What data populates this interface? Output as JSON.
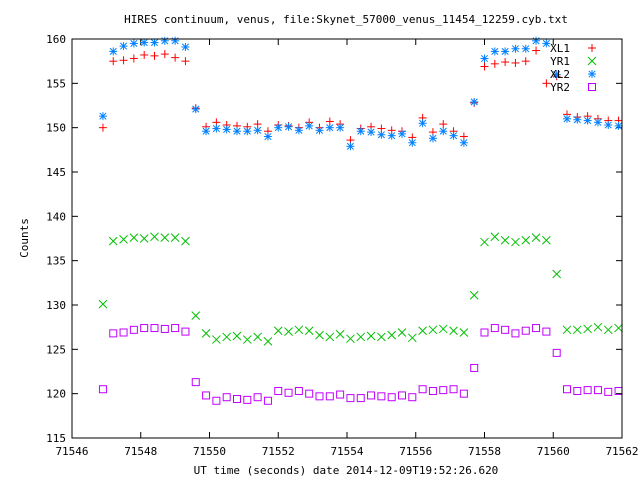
{
  "chart_data": {
    "type": "scatter",
    "title": "HIRES continuum, venus, file:Skynet_57000_venus_11454_12259.cyb.txt",
    "xlabel": "UT time (seconds) date 2014-12-09T19:52:26.620",
    "ylabel": "Counts",
    "xlim": [
      71546,
      71562
    ],
    "ylim": [
      115,
      160
    ],
    "x_ticks": [
      "71546",
      "71548",
      "71550",
      "71552",
      "71554",
      "71556",
      "71558",
      "71560",
      "71562"
    ],
    "y_ticks": [
      "115",
      "120",
      "125",
      "130",
      "135",
      "140",
      "145",
      "150",
      "155",
      "160"
    ],
    "x_tick_values": [
      71546,
      71548,
      71550,
      71552,
      71554,
      71556,
      71558,
      71560,
      71562
    ],
    "y_tick_values": [
      115,
      120,
      125,
      130,
      135,
      140,
      145,
      150,
      155,
      160
    ],
    "grid": false,
    "legend_position": "top-right",
    "x": [
      71546.9,
      71547.2,
      71547.5,
      71547.8,
      71548.1,
      71548.4,
      71548.7,
      71549.0,
      71549.3,
      71549.6,
      71549.9,
      71550.2,
      71550.5,
      71550.8,
      71551.1,
      71551.4,
      71551.7,
      71552.0,
      71552.3,
      71552.6,
      71552.9,
      71553.2,
      71553.5,
      71553.8,
      71554.1,
      71554.4,
      71554.7,
      71555.0,
      71555.3,
      71555.6,
      71555.9,
      71556.2,
      71556.5,
      71556.8,
      71557.1,
      71557.4,
      71557.7,
      71558.0,
      71558.3,
      71558.6,
      71558.9,
      71559.2,
      71559.5,
      71559.8,
      71560.1,
      71560.4,
      71560.7,
      71561.0,
      71561.3,
      71561.6,
      71561.9
    ],
    "series": [
      {
        "name": "XL1",
        "color": "#ff0000",
        "marker": "plus",
        "values": [
          150.0,
          157.5,
          157.6,
          157.8,
          158.2,
          158.1,
          158.3,
          157.9,
          157.5,
          152.2,
          150.1,
          150.6,
          150.3,
          150.2,
          150.1,
          150.4,
          149.6,
          150.3,
          150.2,
          150.0,
          150.6,
          150.0,
          150.7,
          150.4,
          148.6,
          149.9,
          150.1,
          149.9,
          149.7,
          149.6,
          148.9,
          151.1,
          149.5,
          150.4,
          149.6,
          149.0,
          152.8,
          156.9,
          157.2,
          157.4,
          157.3,
          157.5,
          158.7,
          155.0,
          155.8,
          151.5,
          151.2,
          151.3,
          151.0,
          150.8,
          150.8
        ]
      },
      {
        "name": "YR1",
        "color": "#00c000",
        "marker": "cross",
        "values": [
          130.1,
          137.2,
          137.4,
          137.6,
          137.5,
          137.7,
          137.6,
          137.6,
          137.2,
          128.8,
          126.8,
          126.1,
          126.4,
          126.5,
          126.1,
          126.4,
          125.9,
          127.1,
          127.0,
          127.2,
          127.1,
          126.6,
          126.4,
          126.7,
          126.2,
          126.4,
          126.5,
          126.4,
          126.6,
          126.9,
          126.3,
          127.1,
          127.2,
          127.3,
          127.1,
          126.9,
          131.1,
          137.1,
          137.7,
          137.3,
          137.1,
          137.3,
          137.6,
          137.3,
          133.5,
          127.2,
          127.2,
          127.3,
          127.5,
          127.2,
          127.4
        ]
      },
      {
        "name": "XL2",
        "color": "#0080ff",
        "marker": "star",
        "values": [
          151.3,
          158.6,
          159.2,
          159.5,
          159.6,
          159.6,
          159.8,
          159.8,
          159.1,
          152.1,
          149.6,
          149.9,
          149.8,
          149.6,
          149.6,
          149.7,
          149.0,
          150.0,
          150.1,
          149.7,
          150.2,
          149.7,
          150.0,
          150.0,
          147.9,
          149.6,
          149.5,
          149.2,
          149.1,
          149.3,
          148.3,
          150.5,
          148.8,
          149.6,
          149.1,
          148.3,
          152.9,
          157.8,
          158.6,
          158.6,
          158.9,
          158.9,
          159.8,
          159.5,
          156.0,
          151.0,
          150.9,
          150.8,
          150.6,
          150.3,
          150.2
        ]
      },
      {
        "name": "YR2",
        "color": "#c000ff",
        "marker": "square",
        "values": [
          120.5,
          126.8,
          126.9,
          127.2,
          127.4,
          127.4,
          127.3,
          127.4,
          127.0,
          121.3,
          119.8,
          119.2,
          119.6,
          119.4,
          119.3,
          119.6,
          119.2,
          120.3,
          120.1,
          120.3,
          120.0,
          119.7,
          119.7,
          119.9,
          119.5,
          119.5,
          119.8,
          119.7,
          119.6,
          119.8,
          119.6,
          120.5,
          120.3,
          120.4,
          120.5,
          120.0,
          122.9,
          126.9,
          127.4,
          127.2,
          126.8,
          127.1,
          127.4,
          127.0,
          124.6,
          120.5,
          120.3,
          120.4,
          120.4,
          120.2,
          120.3
        ]
      }
    ]
  }
}
